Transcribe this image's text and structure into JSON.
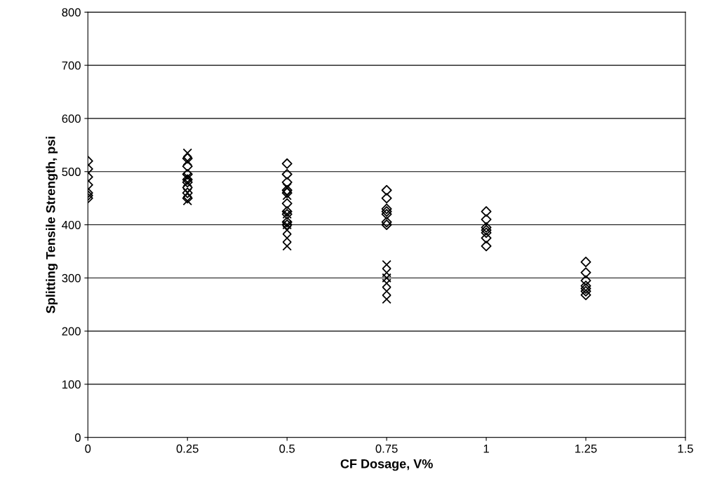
{
  "chart_data": {
    "type": "scatter",
    "xlabel": "CF Dosage, V%",
    "ylabel": "Splitting Tensile Strength, psi",
    "xlim": [
      0,
      1.5
    ],
    "xticks": [
      0,
      0.25,
      0.5,
      0.75,
      1,
      1.25,
      1.5
    ],
    "ylim": [
      0,
      800
    ],
    "yticks": [
      0,
      100,
      200,
      300,
      400,
      500,
      600,
      700,
      800
    ],
    "grid": "y",
    "legend": false,
    "series": [
      {
        "color": "#000000",
        "marker": "diamond",
        "x": [
          0,
          0,
          0,
          0,
          0,
          0,
          0,
          0.25,
          0.25,
          0.25,
          0.25,
          0.25,
          0.25,
          0.25,
          0.25,
          0.5,
          0.5,
          0.5,
          0.5,
          0.5,
          0.5,
          0.5,
          0.5,
          0.5,
          0.5,
          0.75,
          0.75,
          0.75,
          0.75,
          0.75,
          0.75,
          0.75,
          1,
          1,
          1,
          1,
          1,
          1,
          1,
          1.25,
          1.25,
          1.25,
          1.25,
          1.25,
          1.25,
          1.25
        ],
        "values": [
          520,
          505,
          490,
          475,
          460,
          455,
          450,
          525,
          510,
          495,
          485,
          480,
          470,
          460,
          450,
          515,
          495,
          480,
          465,
          460,
          440,
          425,
          420,
          405,
          400,
          465,
          450,
          430,
          425,
          420,
          405,
          400,
          425,
          410,
          395,
          390,
          385,
          375,
          360,
          330,
          310,
          295,
          285,
          280,
          275,
          268
        ]
      },
      {
        "color": "#000000",
        "marker": "cross",
        "x": [
          0.25,
          0.25,
          0.25,
          0.25,
          0.25,
          0.25,
          0.5,
          0.5,
          0.5,
          0.5,
          0.5,
          0.5,
          0.5,
          0.75,
          0.75,
          0.75,
          0.75,
          0.75,
          0.75
        ],
        "values": [
          535,
          520,
          490,
          480,
          460,
          445,
          470,
          455,
          420,
          400,
          390,
          375,
          360,
          325,
          310,
          300,
          290,
          275,
          260
        ]
      }
    ]
  }
}
